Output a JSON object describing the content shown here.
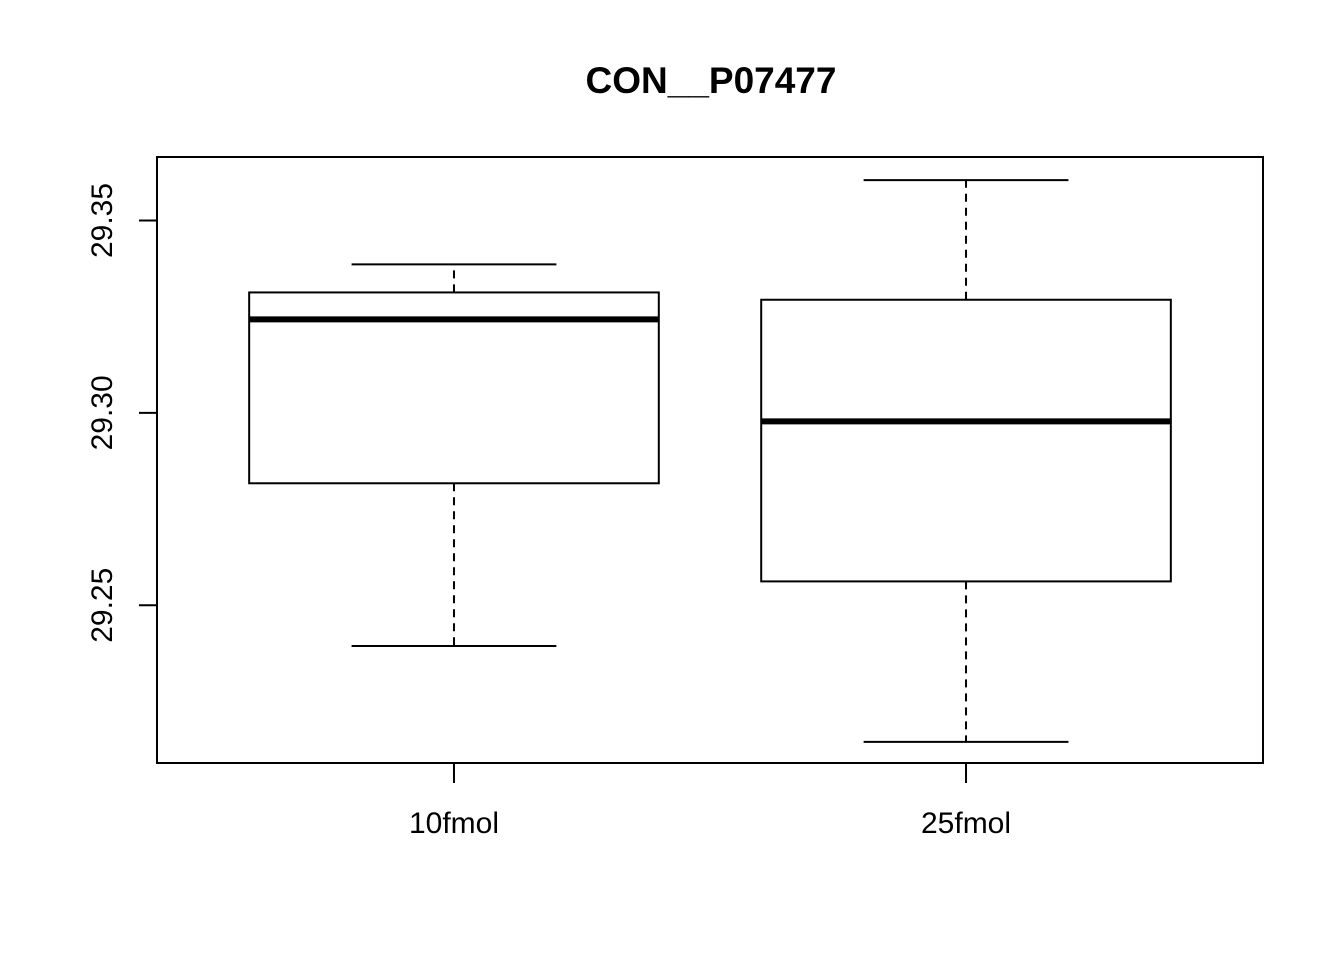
{
  "chart_data": {
    "type": "box",
    "title": "CON__P07477",
    "xlabel": "",
    "ylabel": "",
    "categories": [
      "10fmol",
      "25fmol"
    ],
    "boxes": [
      {
        "category": "10fmol",
        "whisker_low": 29.2394,
        "q1": 29.2817,
        "median": 29.3243,
        "q3": 29.3313,
        "whisker_high": 29.3386
      },
      {
        "category": "25fmol",
        "whisker_low": 29.2145,
        "q1": 29.2562,
        "median": 29.2978,
        "q3": 29.3294,
        "whisker_high": 29.3605
      }
    ],
    "yticks": [
      "29.25",
      "29.30",
      "29.35"
    ],
    "ylim": [
      29.209,
      29.3665
    ],
    "grid": false,
    "legend": "none",
    "colors": {
      "box_fill": "#ffffff",
      "stroke": "#000000"
    }
  }
}
